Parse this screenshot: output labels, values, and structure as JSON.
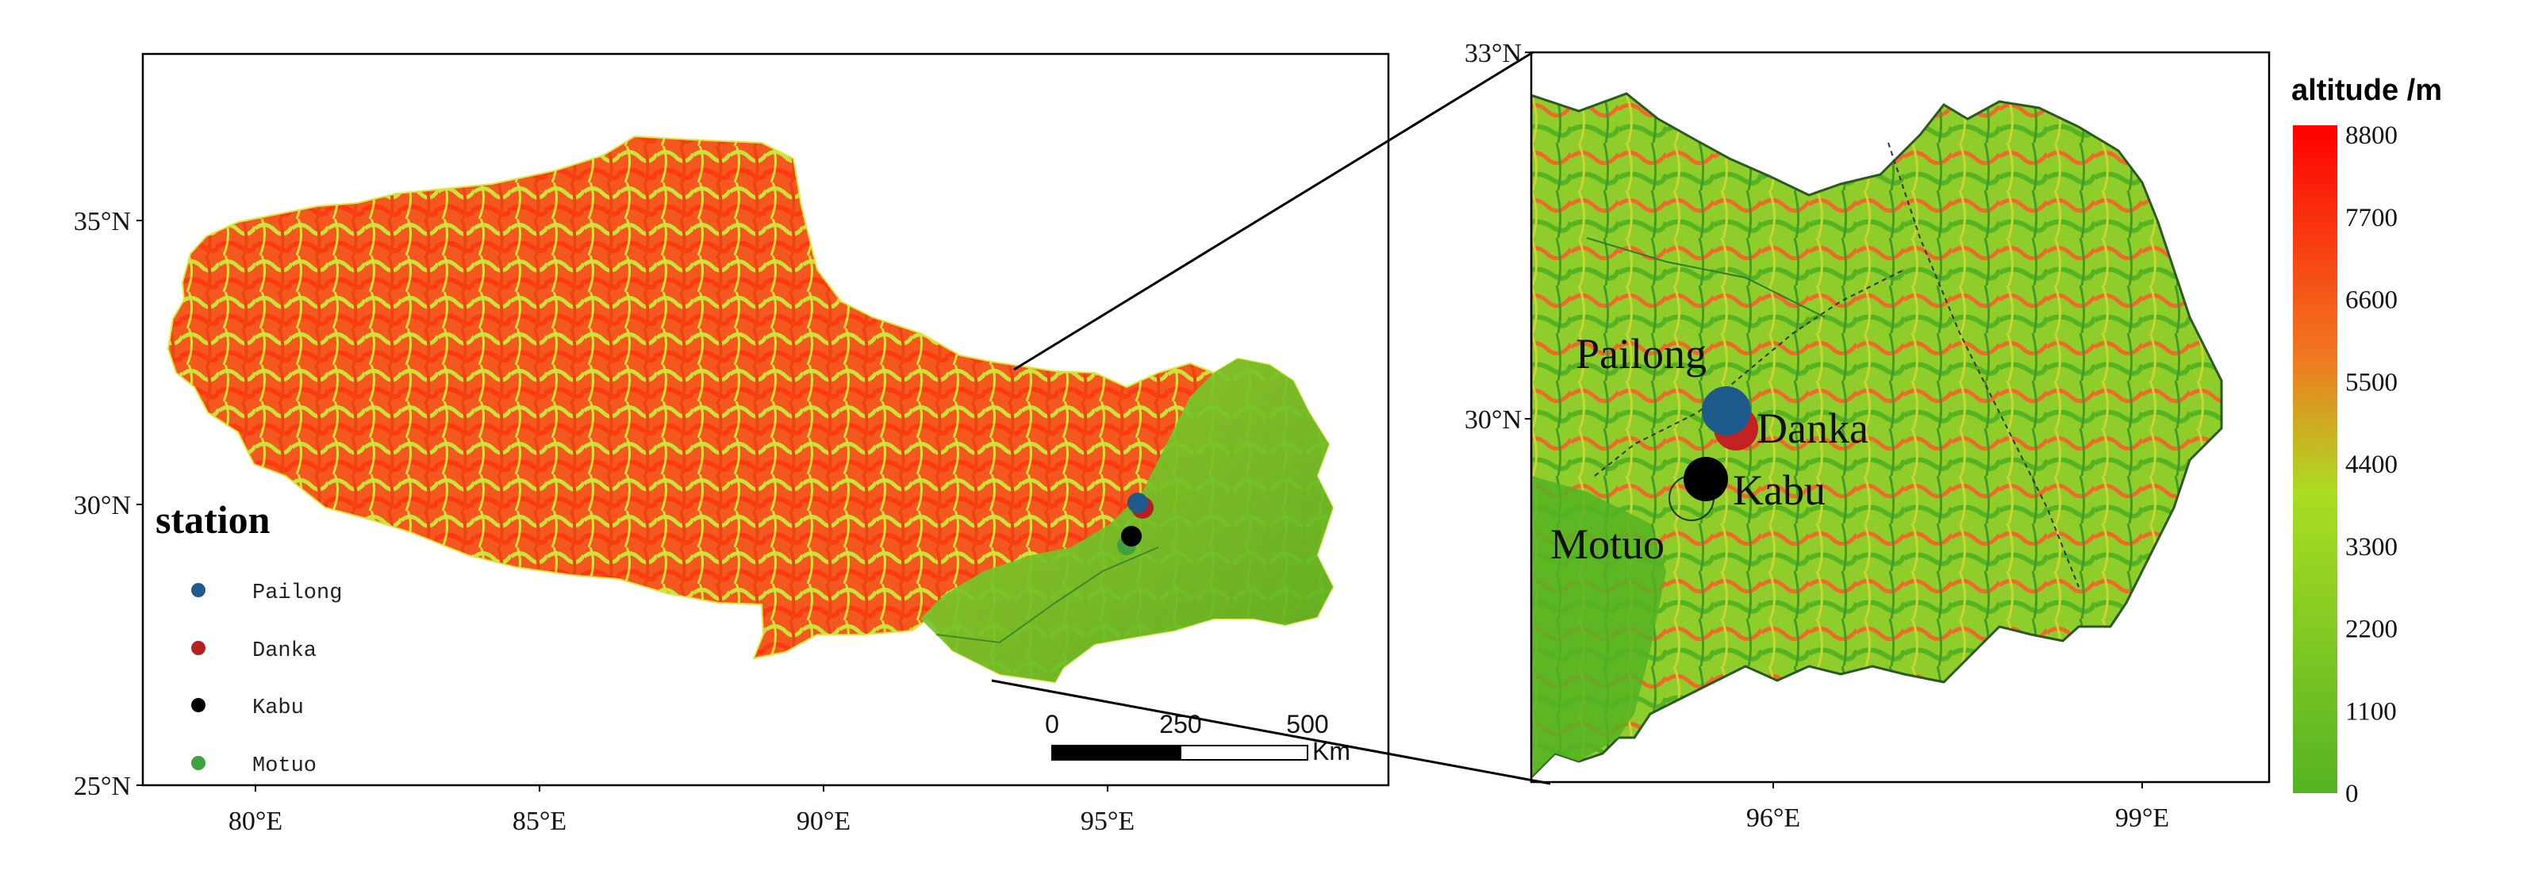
{
  "left_map": {
    "lat_ticks": [
      "35°N",
      "30°N",
      "25°N"
    ],
    "lon_ticks": [
      "80°E",
      "85°E",
      "90°E",
      "95°E"
    ],
    "legend": {
      "title": "station",
      "items": [
        {
          "label": "Pailong",
          "color": "#1f5a8c"
        },
        {
          "label": "Danka",
          "color": "#b52020"
        },
        {
          "label": "Kabu",
          "color": "#000000"
        },
        {
          "label": "Motuo",
          "color": "#3fa13f"
        }
      ]
    },
    "scale_bar": {
      "ticks": [
        "0",
        "250",
        "500"
      ],
      "unit": "Km"
    }
  },
  "right_map": {
    "lat_ticks": [
      "33°N",
      "30°N"
    ],
    "lon_ticks": [
      "96°E",
      "99°E"
    ],
    "stations": [
      {
        "label": "Pailong",
        "color": "#1f5a8c"
      },
      {
        "label": "Danka",
        "color": "#c42222"
      },
      {
        "label": "Kabu",
        "color": "#000000"
      },
      {
        "label": "Motuo",
        "color": "#3fa13f"
      }
    ]
  },
  "colorbar": {
    "title": "altitude /m",
    "ticks": [
      "8800",
      "7700",
      "6600",
      "5500",
      "4400",
      "3300",
      "2200",
      "1100",
      "0"
    ],
    "color_high": "#ff0000",
    "color_mid": "#aadd22",
    "color_low": "#55b322"
  }
}
